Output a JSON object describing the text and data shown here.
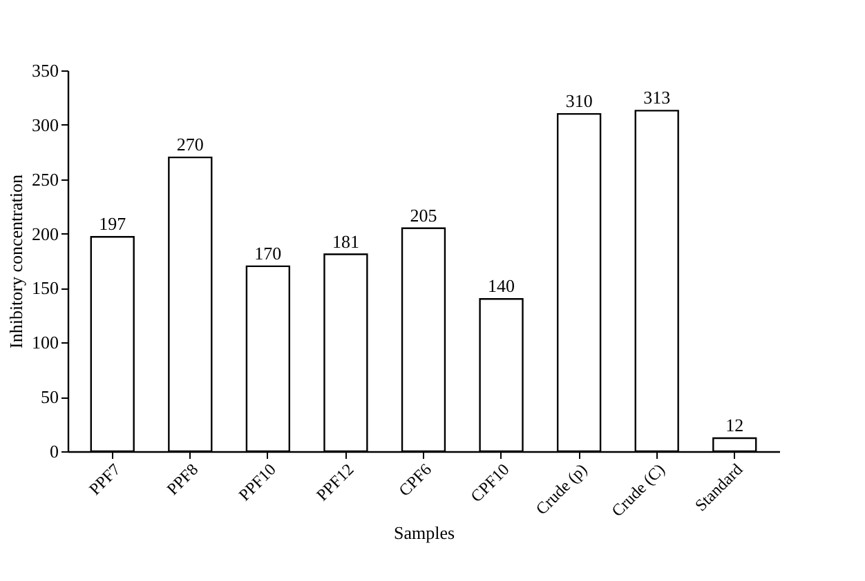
{
  "chart_data": {
    "type": "bar",
    "xlabel": "Samples",
    "ylabel": "Inhibitory concentration",
    "categories": [
      "PPF7",
      "PPF8",
      "PPF10",
      "PPF12",
      "CPF6",
      "CPF10",
      "Crude (p)",
      "Crude (C)",
      "Standard"
    ],
    "values": [
      197,
      270,
      170,
      181,
      205,
      140,
      310,
      313,
      12
    ],
    "color": "#ffffff",
    "ylim": [
      0,
      350
    ],
    "yticks": [
      0,
      50,
      100,
      150,
      200,
      250,
      300,
      350
    ],
    "data_labels": true,
    "grid": false
  }
}
